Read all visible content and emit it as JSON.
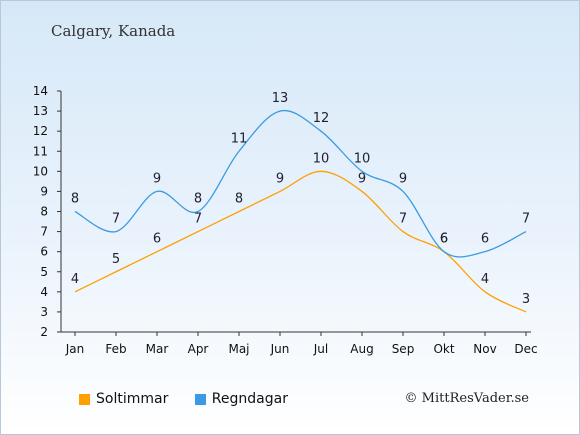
{
  "title": "Calgary, Kanada",
  "copyright": "© MittResVader.se",
  "colors": {
    "soltimmar": "#ff9f00",
    "regndagar": "#3b9ae1"
  },
  "chart_data": {
    "type": "line",
    "title": "Calgary, Kanada",
    "categories": [
      "Jan",
      "Feb",
      "Mar",
      "Apr",
      "Maj",
      "Jun",
      "Jul",
      "Aug",
      "Sep",
      "Okt",
      "Nov",
      "Dec"
    ],
    "series": [
      {
        "name": "Soltimmar",
        "values": [
          4,
          5,
          6,
          7,
          8,
          9,
          10,
          9,
          7,
          6,
          4,
          3
        ]
      },
      {
        "name": "Regndagar",
        "values": [
          8,
          7,
          9,
          8,
          11,
          13,
          12,
          10,
          9,
          6,
          6,
          7
        ]
      }
    ],
    "yticks": [
      2,
      3,
      4,
      5,
      6,
      7,
      8,
      9,
      10,
      11,
      12,
      13,
      14
    ],
    "ylim": [
      2,
      14
    ],
    "grid": false,
    "legend": "bottom-left"
  }
}
